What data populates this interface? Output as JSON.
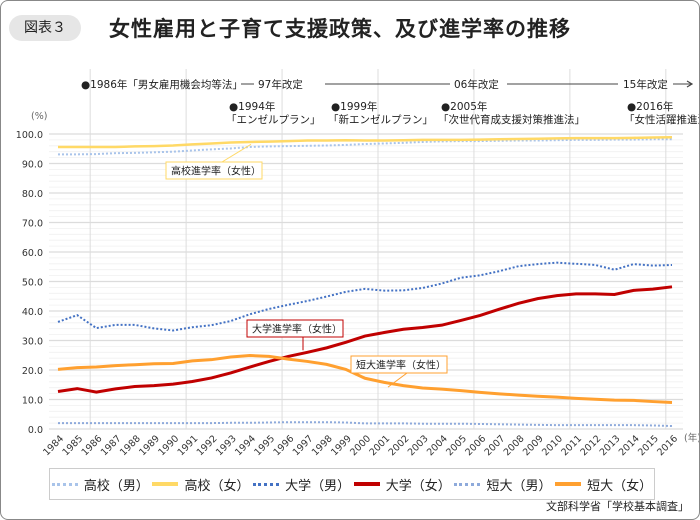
{
  "badge": "図表３",
  "title": "女性雇用と子育て支援政策、及び進学率の推移",
  "timeline": {
    "top": [
      "●1986年「男女雇用機会均等法」",
      "97年改定",
      "06年改定",
      "15年改定"
    ],
    "events": [
      {
        "year": 1994,
        "label": "●1994年",
        "sub": "「エンゼルプラン」"
      },
      {
        "year": 1999,
        "label": "●1999年",
        "sub": "「新エンゼルプラン」"
      },
      {
        "year": 2005,
        "label": "●2005年",
        "sub": "「次世代育成支援対策推進法」"
      },
      {
        "year": 2016,
        "label": "●2016年",
        "sub": "「女性活躍推進法」"
      }
    ]
  },
  "source": "文部科学省「学校基本調査」",
  "chart_data": {
    "type": "line",
    "ylabel": "(%)",
    "xlabel": "(年)",
    "ylim": [
      0,
      100
    ],
    "yticks": [
      "0.0",
      "10.0",
      "20.0",
      "30.0",
      "40.0",
      "50.0",
      "60.0",
      "70.0",
      "80.0",
      "90.0",
      "100.0"
    ],
    "grid": true,
    "legend": "bottom",
    "x": [
      1984,
      1985,
      1986,
      1987,
      1988,
      1989,
      1990,
      1991,
      1992,
      1993,
      1994,
      1995,
      1996,
      1997,
      1998,
      1999,
      2000,
      2001,
      2002,
      2003,
      2004,
      2005,
      2006,
      2007,
      2008,
      2009,
      2010,
      2011,
      2012,
      2013,
      2014,
      2015,
      2016
    ],
    "series": [
      {
        "name": "高校（男）",
        "color": "#a9c4ea",
        "style": "dotted",
        "values": [
          93.1,
          93.1,
          93.2,
          93.5,
          93.6,
          93.8,
          94.0,
          94.4,
          94.8,
          95.1,
          95.6,
          95.8,
          95.9,
          96.0,
          96.1,
          96.3,
          96.6,
          96.8,
          97.0,
          97.3,
          97.5,
          97.6,
          97.6,
          97.7,
          97.8,
          97.8,
          97.9,
          98.0,
          98.0,
          98.1,
          98.1,
          98.2,
          98.2
        ]
      },
      {
        "name": "高校（女）",
        "color": "#ffd966",
        "style": "solid",
        "values": [
          95.6,
          95.6,
          95.6,
          95.6,
          95.8,
          95.9,
          96.1,
          96.5,
          96.8,
          97.1,
          97.3,
          97.4,
          97.6,
          97.8,
          97.8,
          97.9,
          97.8,
          97.8,
          97.9,
          98.0,
          98.0,
          98.0,
          98.1,
          98.2,
          98.3,
          98.4,
          98.5,
          98.6,
          98.6,
          98.6,
          98.7,
          98.8,
          98.9
        ]
      },
      {
        "name": "大学（男）",
        "color": "#4472c4",
        "style": "dotted",
        "values": [
          36.3,
          38.6,
          34.2,
          35.3,
          35.3,
          34.1,
          33.4,
          34.5,
          35.2,
          36.6,
          38.9,
          40.7,
          42.1,
          43.4,
          44.9,
          46.5,
          47.5,
          46.9,
          47.0,
          47.8,
          49.3,
          51.3,
          52.1,
          53.5,
          55.2,
          55.9,
          56.4,
          56.0,
          55.6,
          54.0,
          55.9,
          55.4,
          55.6
        ]
      },
      {
        "name": "大学（女）",
        "color": "#c00000",
        "style": "solid",
        "values": [
          12.7,
          13.7,
          12.5,
          13.6,
          14.4,
          14.7,
          15.2,
          16.1,
          17.3,
          19.0,
          21.0,
          22.9,
          24.6,
          26.0,
          27.5,
          29.4,
          31.5,
          32.7,
          33.8,
          34.4,
          35.2,
          36.8,
          38.5,
          40.6,
          42.6,
          44.2,
          45.2,
          45.8,
          45.8,
          45.6,
          47.0,
          47.4,
          48.2
        ]
      },
      {
        "name": "短大（男）",
        "color": "#8eaadb",
        "style": "dotted",
        "values": [
          2.0,
          2.0,
          2.0,
          2.0,
          2.0,
          2.0,
          2.0,
          2.0,
          2.0,
          2.1,
          2.1,
          2.2,
          2.3,
          2.3,
          2.3,
          2.2,
          1.9,
          1.9,
          1.9,
          1.8,
          1.8,
          1.8,
          1.7,
          1.6,
          1.5,
          1.4,
          1.3,
          1.3,
          1.3,
          1.3,
          1.3,
          1.2,
          1.0
        ]
      },
      {
        "name": "短大（女）",
        "color": "#ffa030",
        "style": "solid",
        "values": [
          20.2,
          20.8,
          21.0,
          21.5,
          21.8,
          22.1,
          22.2,
          23.1,
          23.5,
          24.4,
          24.9,
          24.6,
          23.7,
          22.9,
          21.9,
          20.2,
          17.2,
          15.8,
          14.7,
          13.9,
          13.5,
          13.0,
          12.4,
          11.9,
          11.5,
          11.1,
          10.8,
          10.4,
          10.1,
          9.8,
          9.7,
          9.3,
          9.0
        ]
      }
    ],
    "annotations": [
      {
        "text": "高校進学率（女性）",
        "series": "高校（女）",
        "color": "#ffd966"
      },
      {
        "text": "大学進学率（女性）",
        "series": "大学（女）",
        "color": "#c00000"
      },
      {
        "text": "短大進学率（女性）",
        "series": "短大（女）",
        "color": "#ffa030"
      }
    ]
  }
}
